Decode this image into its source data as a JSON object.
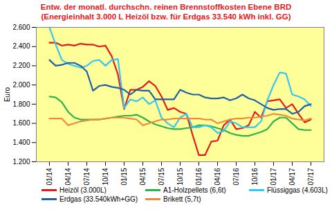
{
  "chart_data": {
    "type": "line",
    "title": "Entw. der monatl. durchschn. reinen Brennstoffkosten Ebene BRD",
    "subtitle": "(Energieinhalt 3.000 L Heizöl bzw. für Erdgas 33.540 kWh inkl. GG)",
    "y_label": "Euro",
    "categories": [
      "01/14",
      null,
      null,
      "04/14",
      null,
      null,
      "07/14",
      null,
      null,
      "10/14",
      null,
      null,
      "01/15",
      null,
      null,
      "04/15",
      null,
      null,
      "07/15",
      null,
      null,
      "10/15",
      null,
      null,
      "01/16",
      null,
      null,
      "04/16",
      null,
      null,
      "07/16",
      null,
      null,
      "10/16",
      null,
      null,
      "01/17",
      null,
      null,
      "04/17",
      null,
      null,
      "07/17"
    ],
    "series": [
      {
        "name": "Heizöl (3.000L)",
        "color": "#e31a1c",
        "values": [
          2440,
          2440,
          2410,
          2420,
          2410,
          2430,
          2420,
          2420,
          2400,
          2410,
          2300,
          2110,
          1750,
          1950,
          1950,
          1980,
          2040,
          1990,
          1880,
          1740,
          1760,
          1720,
          1700,
          1480,
          1270,
          1270,
          1410,
          1420,
          1580,
          1640,
          1540,
          1550,
          1580,
          1720,
          1660,
          1830,
          1840,
          1850,
          1760,
          1800,
          1700,
          1610,
          1640
        ]
      },
      {
        "name": "A1-Holzpellets (6,6t)",
        "color": "#2ab34a",
        "values": [
          1880,
          1870,
          1820,
          1720,
          1660,
          1640,
          1640,
          1640,
          1640,
          1650,
          1660,
          1670,
          1680,
          1680,
          1690,
          1660,
          1620,
          1590,
          1570,
          1550,
          1540,
          1540,
          1550,
          1560,
          1580,
          1580,
          1570,
          1550,
          1530,
          1500,
          1480,
          1470,
          1470,
          1490,
          1510,
          1540,
          1620,
          1660,
          1660,
          1600,
          1540,
          1530,
          1530
        ]
      },
      {
        "name": "Flüssiggas (4.603L)",
        "color": "#33c6f4",
        "values": [
          2600,
          2420,
          2260,
          2220,
          2200,
          2180,
          2200,
          2250,
          2260,
          2200,
          2260,
          2270,
          1760,
          1850,
          1830,
          1870,
          1800,
          1840,
          1660,
          1600,
          1560,
          1660,
          1700,
          1560,
          1560,
          1580,
          1560,
          1500,
          1520,
          1620,
          1600,
          1560,
          1560,
          1560,
          1620,
          1840,
          2000,
          2130,
          2120,
          1900,
          1880,
          1850,
          1780
        ]
      },
      {
        "name": "Erdgas (33.540kWh+GG)",
        "color": "#1f5fa8",
        "values": [
          2260,
          2200,
          2210,
          2230,
          2230,
          2200,
          2140,
          1940,
          1990,
          2000,
          1980,
          1970,
          1950,
          1900,
          1950,
          1940,
          1940,
          1850,
          1850,
          1850,
          1850,
          1950,
          1920,
          1900,
          1900,
          1870,
          1860,
          1860,
          1870,
          1840,
          1860,
          1900,
          1860,
          1840,
          1800,
          1760,
          1740,
          1750,
          1750,
          1700,
          1720,
          1780,
          1800
        ]
      },
      {
        "name": "Brikett (5,7t)",
        "color": "#ee8a3c",
        "values": [
          1650,
          1650,
          1650,
          1580,
          1600,
          1620,
          1630,
          1640,
          1640,
          1650,
          1660,
          1660,
          1660,
          1650,
          1640,
          1580,
          1600,
          1620,
          1640,
          1640,
          1650,
          1650,
          1650,
          1650,
          1650,
          1640,
          1640,
          1600,
          1620,
          1640,
          1650,
          1650,
          1660,
          1660,
          1670,
          1680,
          1700,
          1690,
          1680,
          1650,
          1640,
          1630,
          1650
        ]
      }
    ],
    "ylim": [
      1200,
      2600
    ],
    "yticks": [
      {
        "value": 1200,
        "label": "1.200"
      },
      {
        "value": 1400,
        "label": "1.400"
      },
      {
        "value": 1600,
        "label": "1.600"
      },
      {
        "value": 1800,
        "label": "1.800"
      },
      {
        "value": 2000,
        "label": "2.000"
      },
      {
        "value": 2200,
        "label": "2.200"
      },
      {
        "value": 2400,
        "label": "2.400"
      },
      {
        "value": 2600,
        "label": "2.600"
      }
    ],
    "grid": true,
    "legend": "bottom"
  }
}
